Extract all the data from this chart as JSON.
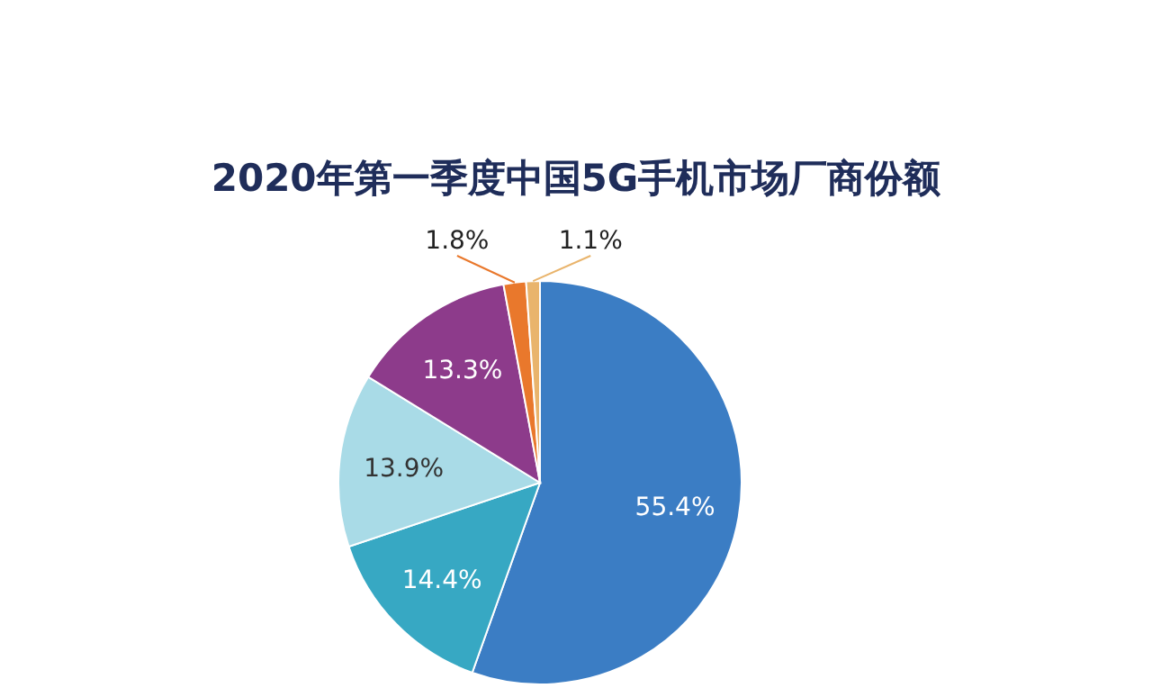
{
  "chart_data": {
    "type": "pie",
    "title": "2020年第一季度中国5G手机市场厂商份额",
    "categories": [
      null,
      null,
      null,
      null,
      null,
      null
    ],
    "values": [
      55.4,
      14.4,
      13.9,
      13.3,
      1.8,
      1.1
    ],
    "colors": [
      "#3b7dc4",
      "#37a8c3",
      "#a9dbe7",
      "#8d3b8b",
      "#e9782c",
      "#e9b46c"
    ],
    "value_labels": [
      "55.4%",
      "14.4%",
      "13.9%",
      "13.3%",
      "1.8%",
      "1.1%"
    ]
  }
}
